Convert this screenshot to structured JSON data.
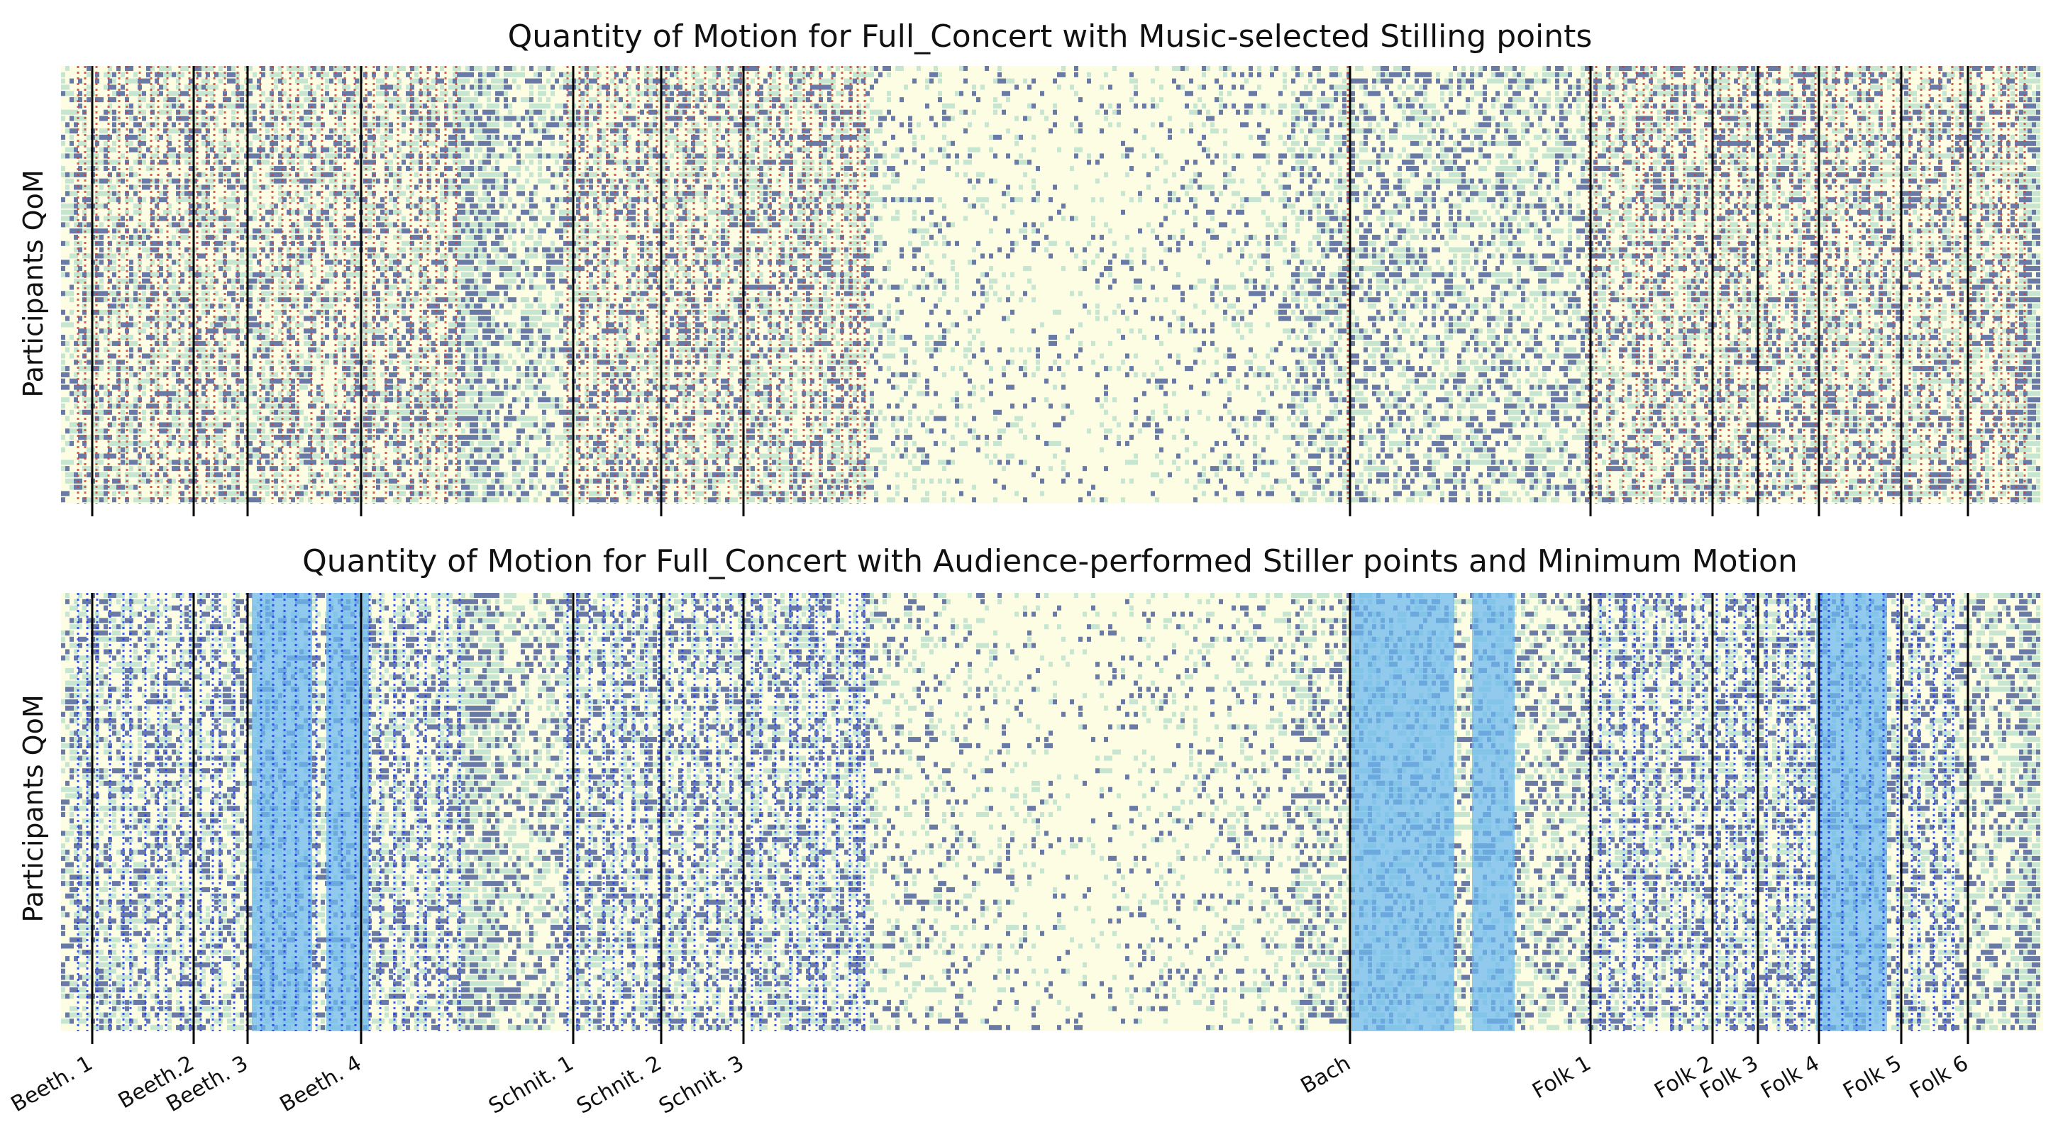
{
  "chart_data": [
    {
      "type": "heatmap",
      "title": "Quantity of Motion for Full_Concert with Music-selected Stilling points",
      "xlabel": "",
      "ylabel": "Participants QoM",
      "overlay": {
        "kind": "Music-selected Stilling points",
        "line_color": "#e03c2a",
        "line_style": "dotted"
      },
      "section_boundaries": [
        "Beeth. 1",
        "Beeth.2",
        "Beeth. 3",
        "Beeth. 4",
        "Schnit. 1",
        "Schnit. 2",
        "Schnit. 3",
        "Bach",
        "Folk 1",
        "Folk 2",
        "Folk 3",
        "Folk 4",
        "Folk 5",
        "Folk 6"
      ]
    },
    {
      "type": "heatmap",
      "title": "Quantity of Motion for Full_Concert with Audience-performed Stiller points and Minimum Motion",
      "xlabel": "",
      "ylabel": "Participants QoM",
      "overlay": {
        "kind": "Audience-performed Stiller points and Minimum Motion",
        "line_color": "#1f3fe0",
        "band_color": "#6cb8f0",
        "line_style": "dotted"
      },
      "section_boundaries": [
        "Beeth. 1",
        "Beeth.2",
        "Beeth. 3",
        "Beeth. 4",
        "Schnit. 1",
        "Schnit. 2",
        "Schnit. 3",
        "Bach",
        "Folk 1",
        "Folk 2",
        "Folk 3",
        "Folk 4",
        "Folk 5",
        "Folk 6"
      ]
    }
  ],
  "x_tick_labels": [
    "Beeth. 1",
    "Beeth.2",
    "Beeth. 3",
    "Beeth. 4",
    "Schnit. 1",
    "Schnit. 2",
    "Schnit. 3",
    "Bach",
    "Folk 1",
    "Folk 2",
    "Folk 3",
    "Folk 4",
    "Folk 5",
    "Folk 6"
  ],
  "colormap": {
    "low": "#fdfde4",
    "mid": "#c6e6d2",
    "high": "#6a7aa6"
  }
}
